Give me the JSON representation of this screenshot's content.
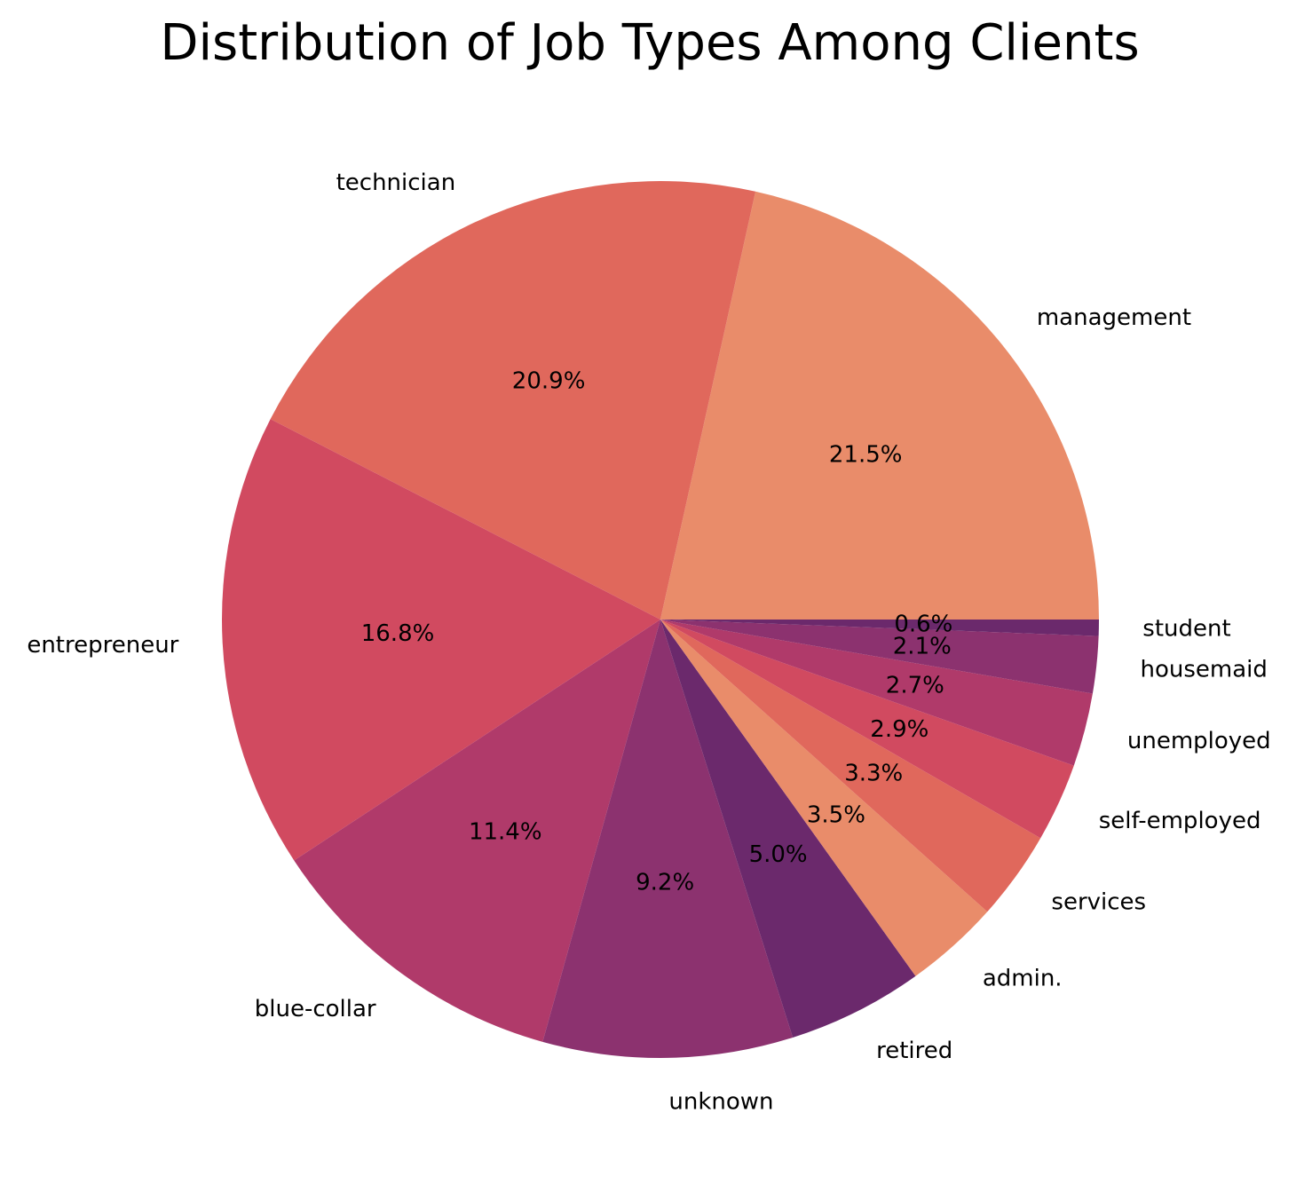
{
  "chart_data": {
    "type": "pie",
    "title": "Distribution of Job Types Among Clients",
    "slices": [
      {
        "label": "management",
        "value": 21.5,
        "pct_label": "21.5%",
        "color": "#e98c6a"
      },
      {
        "label": "technician",
        "value": 20.9,
        "pct_label": "20.9%",
        "color": "#e0685c"
      },
      {
        "label": "entrepreneur",
        "value": 16.8,
        "pct_label": "16.8%",
        "color": "#d14a60"
      },
      {
        "label": "blue-collar",
        "value": 11.4,
        "pct_label": "11.4%",
        "color": "#b03a6a"
      },
      {
        "label": "unknown",
        "value": 9.2,
        "pct_label": "9.2%",
        "color": "#8c326f"
      },
      {
        "label": "retired",
        "value": 5.0,
        "pct_label": "5.0%",
        "color": "#6b296c"
      },
      {
        "label": "admin.",
        "value": 3.5,
        "pct_label": "3.5%",
        "color": "#e98c6a"
      },
      {
        "label": "services",
        "value": 3.3,
        "pct_label": "3.3%",
        "color": "#e0685c"
      },
      {
        "label": "self-employed",
        "value": 2.9,
        "pct_label": "2.9%",
        "color": "#d14a60"
      },
      {
        "label": "unemployed",
        "value": 2.7,
        "pct_label": "2.7%",
        "color": "#b03a6a"
      },
      {
        "label": "housemaid",
        "value": 2.1,
        "pct_label": "2.1%",
        "color": "#8c326f"
      },
      {
        "label": "student",
        "value": 0.6,
        "pct_label": "0.6%",
        "color": "#6b296c"
      }
    ],
    "start_angle": 0,
    "direction": "counterclockwise",
    "legend": "none"
  }
}
